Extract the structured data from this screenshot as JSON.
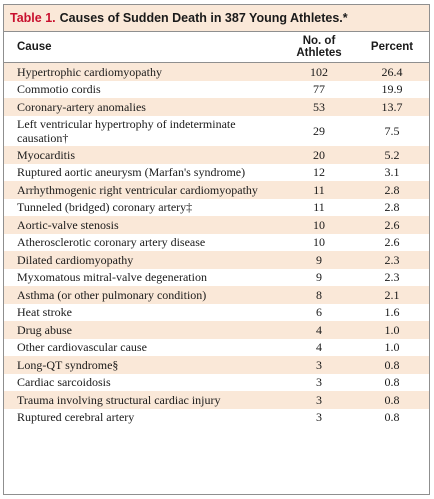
{
  "caption": {
    "label": "Table 1.",
    "title": "Causes of Sudden Death in 387 Young Athletes.*"
  },
  "headers": {
    "cause": "Cause",
    "num": "No. of Athletes",
    "pct": "Percent"
  },
  "rows": [
    {
      "cause": "Hypertrophic cardiomyopathy",
      "num": "102",
      "pct": "26.4",
      "shade": true
    },
    {
      "cause": "Commotio cordis",
      "num": "77",
      "pct": "19.9",
      "shade": false
    },
    {
      "cause": "Coronary-artery anomalies",
      "num": "53",
      "pct": "13.7",
      "shade": true
    },
    {
      "cause": "Left ventricular hypertrophy of indeterminate causation†",
      "num": "29",
      "pct": "7.5",
      "shade": false
    },
    {
      "cause": "Myocarditis",
      "num": "20",
      "pct": "5.2",
      "shade": true
    },
    {
      "cause": "Ruptured aortic aneurysm (Marfan's syndrome)",
      "num": "12",
      "pct": "3.1",
      "shade": false
    },
    {
      "cause": "Arrhythmogenic right ventricular cardiomyopathy",
      "num": "11",
      "pct": "2.8",
      "shade": true
    },
    {
      "cause": "Tunneled (bridged) coronary artery‡",
      "num": "11",
      "pct": "2.8",
      "shade": false
    },
    {
      "cause": "Aortic-valve stenosis",
      "num": "10",
      "pct": "2.6",
      "shade": true
    },
    {
      "cause": "Atherosclerotic coronary artery disease",
      "num": "10",
      "pct": "2.6",
      "shade": false
    },
    {
      "cause": "Dilated cardiomyopathy",
      "num": "9",
      "pct": "2.3",
      "shade": true
    },
    {
      "cause": "Myxomatous mitral-valve degeneration",
      "num": "9",
      "pct": "2.3",
      "shade": false
    },
    {
      "cause": "Asthma (or other pulmonary condition)",
      "num": "8",
      "pct": "2.1",
      "shade": true
    },
    {
      "cause": "Heat stroke",
      "num": "6",
      "pct": "1.6",
      "shade": false
    },
    {
      "cause": "Drug abuse",
      "num": "4",
      "pct": "1.0",
      "shade": true
    },
    {
      "cause": "Other cardiovascular cause",
      "num": "4",
      "pct": "1.0",
      "shade": false
    },
    {
      "cause": "Long-QT syndrome§",
      "num": "3",
      "pct": "0.8",
      "shade": true
    },
    {
      "cause": "Cardiac sarcoidosis",
      "num": "3",
      "pct": "0.8",
      "shade": false
    },
    {
      "cause": "Trauma involving structural cardiac injury",
      "num": "3",
      "pct": "0.8",
      "shade": true
    },
    {
      "cause": "Ruptured cerebral artery",
      "num": "3",
      "pct": "0.8",
      "shade": false
    }
  ],
  "colors": {
    "caption_bg": "#fae8d8",
    "row_shade": "#fae8d8",
    "label_red": "#c8102e",
    "border": "#8f8f8f"
  }
}
